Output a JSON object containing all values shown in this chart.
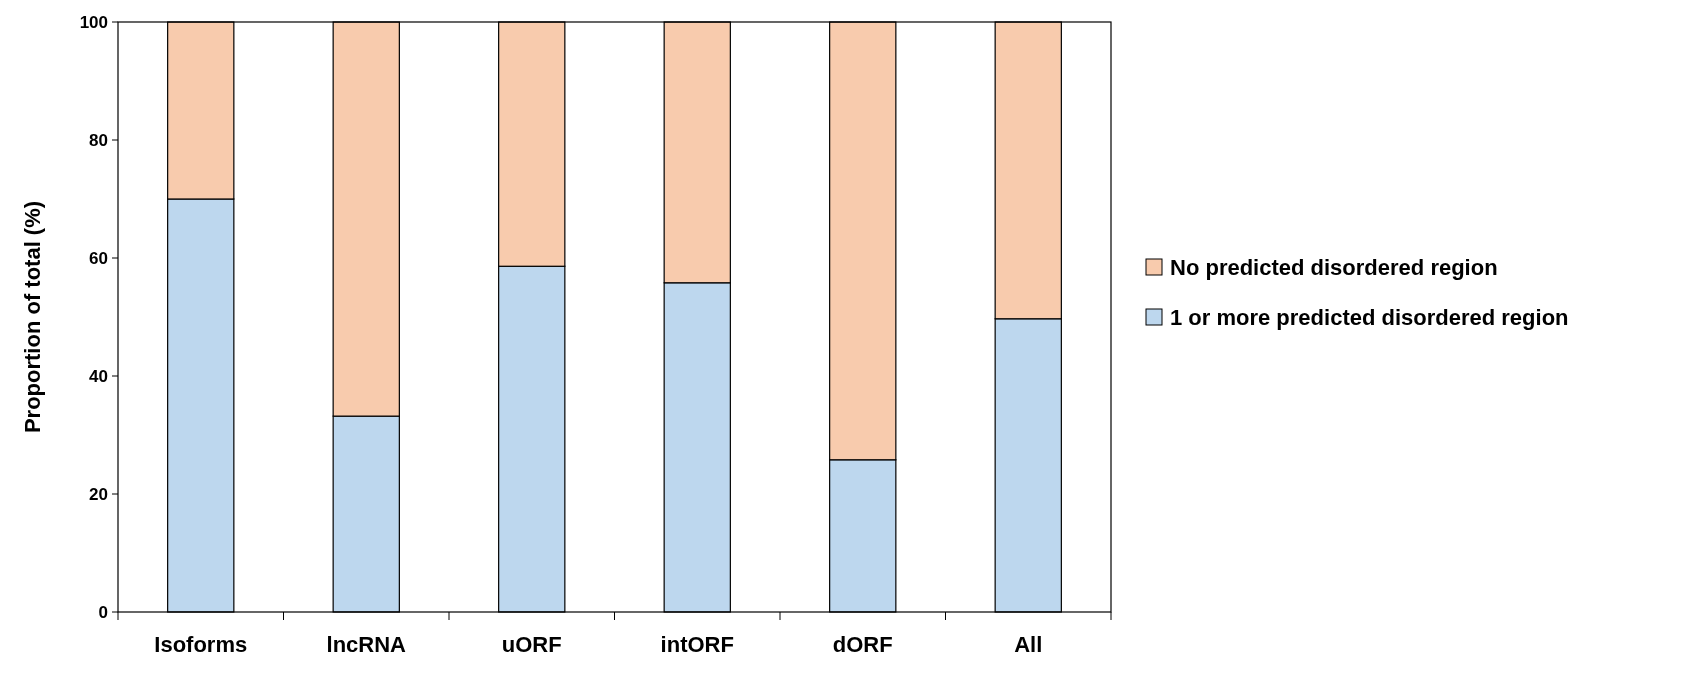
{
  "chart_data": {
    "type": "bar",
    "stacked": true,
    "ylabel": "Proportion of total (%)",
    "categories": [
      "Isoforms",
      "lncRNA",
      "uORF",
      "intORF",
      "dORF",
      "All"
    ],
    "series": [
      {
        "name": "1 or more predicted disordered region",
        "color": "#bdd7ee",
        "values": [
          70,
          33.2,
          58.6,
          55.8,
          25.8,
          49.7
        ]
      },
      {
        "name": "No predicted disordered region",
        "color": "#f8cbad",
        "values": [
          30,
          66.8,
          41.4,
          44.2,
          74.2,
          50.3
        ]
      }
    ],
    "ylim": [
      0,
      100
    ],
    "yticks": [
      0,
      20,
      40,
      60,
      80,
      100
    ],
    "grid": false,
    "legend": "right"
  }
}
